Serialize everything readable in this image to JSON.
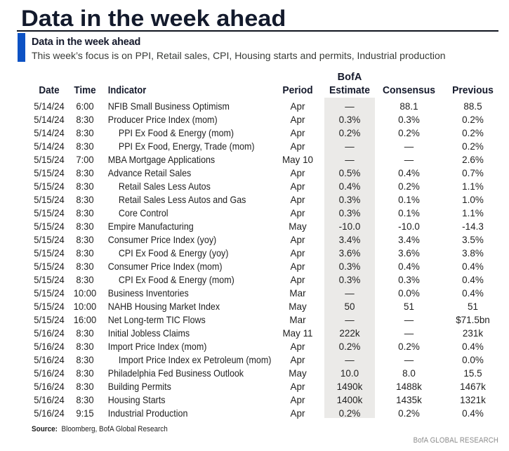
{
  "page_title": "Data in the week ahead",
  "subtitle": {
    "heading": "Data in the week ahead",
    "description": "This week’s focus is on PPI, Retail sales, CPI, Housing starts and permits, Industrial production"
  },
  "colors": {
    "accent_blue": "#0d52c4",
    "band_gray": "#ebeae8",
    "title_navy": "#131a2c",
    "rule_dark": "#10141f",
    "branding_gray": "#8b8b8b"
  },
  "table": {
    "headers": {
      "date": "Date",
      "time": "Time",
      "indicator": "Indicator",
      "period": "Period",
      "estimate_line1": "BofA",
      "estimate_line2": "Estimate",
      "consensus": "Consensus",
      "previous": "Previous"
    },
    "rows": [
      {
        "date": "5/14/24",
        "time": "6:00",
        "indicator": "NFIB Small Business Optimism",
        "indent": false,
        "period": "Apr",
        "estimate": "—",
        "consensus": "88.1",
        "previous": "88.5"
      },
      {
        "date": "5/14/24",
        "time": "8:30",
        "indicator": "Producer Price Index (mom)",
        "indent": false,
        "period": "Apr",
        "estimate": "0.3%",
        "consensus": "0.3%",
        "previous": "0.2%"
      },
      {
        "date": "5/14/24",
        "time": "8:30",
        "indicator": "PPI Ex Food & Energy (mom)",
        "indent": true,
        "period": "Apr",
        "estimate": "0.2%",
        "consensus": "0.2%",
        "previous": "0.2%"
      },
      {
        "date": "5/14/24",
        "time": "8:30",
        "indicator": "PPI Ex Food, Energy, Trade (mom)",
        "indent": true,
        "period": "Apr",
        "estimate": "—",
        "consensus": "—",
        "previous": "0.2%"
      },
      {
        "date": "5/15/24",
        "time": "7:00",
        "indicator": "MBA Mortgage Applications",
        "indent": false,
        "period": "May 10",
        "estimate": "—",
        "consensus": "—",
        "previous": "2.6%"
      },
      {
        "date": "5/15/24",
        "time": "8:30",
        "indicator": "Advance Retail Sales",
        "indent": false,
        "period": "Apr",
        "estimate": "0.5%",
        "consensus": "0.4%",
        "previous": "0.7%"
      },
      {
        "date": "5/15/24",
        "time": "8:30",
        "indicator": "Retail Sales Less Autos",
        "indent": true,
        "period": "Apr",
        "estimate": "0.4%",
        "consensus": "0.2%",
        "previous": "1.1%"
      },
      {
        "date": "5/15/24",
        "time": "8:30",
        "indicator": "Retail Sales Less Autos and Gas",
        "indent": true,
        "period": "Apr",
        "estimate": "0.3%",
        "consensus": "0.1%",
        "previous": "1.0%"
      },
      {
        "date": "5/15/24",
        "time": "8:30",
        "indicator": "Core Control",
        "indent": true,
        "period": "Apr",
        "estimate": "0.3%",
        "consensus": "0.1%",
        "previous": "1.1%"
      },
      {
        "date": "5/15/24",
        "time": "8:30",
        "indicator": "Empire Manufacturing",
        "indent": false,
        "period": "May",
        "estimate": "-10.0",
        "consensus": "-10.0",
        "previous": "-14.3"
      },
      {
        "date": "5/15/24",
        "time": "8:30",
        "indicator": "Consumer Price Index (yoy)",
        "indent": false,
        "period": "Apr",
        "estimate": "3.4%",
        "consensus": "3.4%",
        "previous": "3.5%"
      },
      {
        "date": "5/15/24",
        "time": "8:30",
        "indicator": "CPI Ex Food & Energy (yoy)",
        "indent": true,
        "period": "Apr",
        "estimate": "3.6%",
        "consensus": "3.6%",
        "previous": "3.8%"
      },
      {
        "date": "5/15/24",
        "time": "8:30",
        "indicator": "Consumer Price Index (mom)",
        "indent": false,
        "period": "Apr",
        "estimate": "0.3%",
        "consensus": "0.4%",
        "previous": "0.4%"
      },
      {
        "date": "5/15/24",
        "time": "8:30",
        "indicator": "CPI Ex Food & Energy (mom)",
        "indent": true,
        "period": "Apr",
        "estimate": "0.3%",
        "consensus": "0.3%",
        "previous": "0.4%"
      },
      {
        "date": "5/15/24",
        "time": "10:00",
        "indicator": "Business Inventories",
        "indent": false,
        "period": "Mar",
        "estimate": "—",
        "consensus": "0.0%",
        "previous": "0.4%"
      },
      {
        "date": "5/15/24",
        "time": "10:00",
        "indicator": "NAHB Housing Market Index",
        "indent": false,
        "period": "May",
        "estimate": "50",
        "consensus": "51",
        "previous": "51"
      },
      {
        "date": "5/15/24",
        "time": "16:00",
        "indicator": "Net Long-term TIC Flows",
        "indent": false,
        "period": "Mar",
        "estimate": "—",
        "consensus": "—",
        "previous": "$71.5bn"
      },
      {
        "date": "5/16/24",
        "time": "8:30",
        "indicator": "Initial Jobless Claims",
        "indent": false,
        "period": "May 11",
        "estimate": "222k",
        "consensus": "—",
        "previous": "231k"
      },
      {
        "date": "5/16/24",
        "time": "8:30",
        "indicator": "Import Price Index (mom)",
        "indent": false,
        "period": "Apr",
        "estimate": "0.2%",
        "consensus": "0.2%",
        "previous": "0.4%"
      },
      {
        "date": "5/16/24",
        "time": "8:30",
        "indicator": "Import Price Index ex Petroleum (mom)",
        "indent": true,
        "period": "Apr",
        "estimate": "—",
        "consensus": "—",
        "previous": "0.0%"
      },
      {
        "date": "5/16/24",
        "time": "8:30",
        "indicator": "Philadelphia Fed Business Outlook",
        "indent": false,
        "period": "May",
        "estimate": "10.0",
        "consensus": "8.0",
        "previous": "15.5"
      },
      {
        "date": "5/16/24",
        "time": "8:30",
        "indicator": "Building Permits",
        "indent": false,
        "period": "Apr",
        "estimate": "1490k",
        "consensus": "1488k",
        "previous": "1467k"
      },
      {
        "date": "5/16/24",
        "time": "8:30",
        "indicator": "Housing Starts",
        "indent": false,
        "period": "Apr",
        "estimate": "1400k",
        "consensus": "1435k",
        "previous": "1321k"
      },
      {
        "date": "5/16/24",
        "time": "9:15",
        "indicator": "Industrial Production",
        "indent": false,
        "period": "Apr",
        "estimate": "0.2%",
        "consensus": "0.2%",
        "previous": "0.4%"
      }
    ]
  },
  "footer": {
    "source_label": "Source:",
    "source_text": "Bloomberg, BofA Global Research",
    "branding": "BofA GLOBAL RESEARCH"
  }
}
